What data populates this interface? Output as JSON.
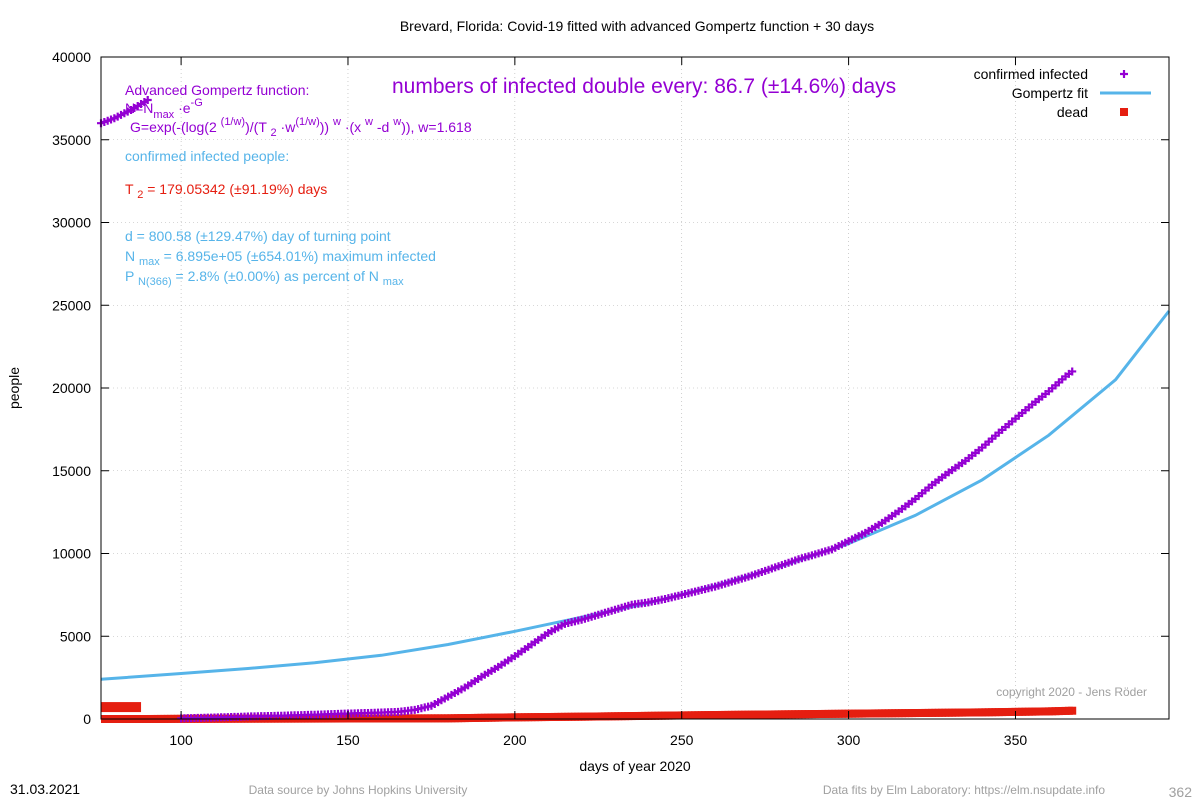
{
  "colors": {
    "infected": "#9400d3",
    "fit": "#56b4e9",
    "dead": "#e51e10",
    "frame": "#000000",
    "grid": "#b0b0b0",
    "copyright": "#a0a0a0",
    "footer": "#a0a0a0"
  },
  "footer": {
    "date": "31.03.2021",
    "source": "Data source by Johns Hopkins University",
    "fits": "Data fits by Elm Laboratory: https://elm.nsupdate.info",
    "page": "362"
  },
  "copyright": "copyright 2020 - Jens Röder",
  "annotations": {
    "doubling": "numbers of infected double every: 86.7 (±14.6%) days",
    "formula_title": "Advanced Gompertz function:",
    "formula_n": {
      "a": "N=N",
      "sub": "max",
      "b": " ·e",
      "sup": "-G"
    },
    "formula_g": {
      "p1": "G=exp(-(log(2 ",
      "s1": "(1/w)",
      "p2": ")/(T ",
      "sub2": "2",
      "p3": " ·w",
      "s3": "(1/w)",
      "p4": ")) ",
      "s4": "w",
      "p5": " ·(x ",
      "s5": "w",
      "p6": " -d ",
      "s6": "w",
      "p7": ")), w=1.618"
    },
    "confirmed_label": "confirmed infected people:",
    "t2": {
      "a": "T ",
      "sub": "2",
      "b": " = 179.05342 (±91.19%) days"
    },
    "d_line": "d = 800.58 (±129.47%) day of turning point",
    "nmax": {
      "a": "N ",
      "sub": "max",
      "b": " = 6.895e+05 (±654.01%) maximum infected"
    },
    "pn": {
      "a": "P ",
      "sub": "N(366)",
      "b": " = 2.8% (±0.00%) as percent of N ",
      "sub2": "max"
    }
  },
  "chart_data": {
    "type": "scatter",
    "title": "Brevard,  Florida: Covid-19 fitted with advanced Gompertz function + 30 days",
    "xlabel": "days of year 2020",
    "ylabel": "people",
    "xlim": [
      76,
      396
    ],
    "ylim": [
      0,
      40000
    ],
    "xticks": [
      100,
      150,
      200,
      250,
      300,
      350
    ],
    "yticks": [
      0,
      5000,
      10000,
      15000,
      20000,
      25000,
      30000,
      35000,
      40000
    ],
    "grid": true,
    "legend_position": "top-right",
    "legend": [
      "confirmed infected",
      "Gompertz fit",
      "dead"
    ],
    "series": [
      {
        "name": "confirmed infected",
        "style": "points-plus",
        "x": [
          76,
          80,
          85,
          90,
          100,
          110,
          120,
          130,
          140,
          150,
          160,
          165,
          170,
          175,
          180,
          185,
          190,
          195,
          200,
          205,
          210,
          215,
          220,
          225,
          230,
          235,
          240,
          245,
          250,
          255,
          260,
          265,
          270,
          275,
          280,
          285,
          290,
          295,
          300,
          305,
          310,
          315,
          320,
          325,
          330,
          335,
          340,
          345,
          350,
          355,
          360,
          365,
          367
        ],
        "y": [
          36000,
          36300,
          36800,
          37400,
          40,
          90,
          150,
          200,
          260,
          330,
          390,
          430,
          550,
          800,
          1350,
          1900,
          2550,
          3150,
          3800,
          4500,
          5200,
          5750,
          6000,
          6300,
          6600,
          6900,
          7050,
          7250,
          7500,
          7750,
          8000,
          8300,
          8600,
          8950,
          9300,
          9650,
          9950,
          10250,
          10750,
          11250,
          11850,
          12550,
          13300,
          14150,
          14900,
          15600,
          16400,
          17300,
          18150,
          19000,
          19800,
          20700,
          21000
        ]
      },
      {
        "name": "Gompertz fit",
        "style": "line",
        "x": [
          76,
          100,
          120,
          140,
          160,
          180,
          200,
          220,
          240,
          260,
          280,
          300,
          320,
          340,
          360,
          380,
          396
        ],
        "y": [
          2400,
          2750,
          3050,
          3400,
          3850,
          4500,
          5300,
          6150,
          7000,
          8050,
          9250,
          10600,
          12300,
          14450,
          17150,
          20500,
          24650
        ]
      },
      {
        "name": "dead",
        "style": "points-square",
        "x": [
          76,
          88,
          90,
          100,
          120,
          150,
          180,
          200,
          220,
          240,
          260,
          280,
          300,
          320,
          340,
          360,
          367
        ],
        "y": [
          720,
          720,
          0,
          10,
          20,
          30,
          40,
          100,
          140,
          190,
          240,
          280,
          320,
          360,
          400,
          460,
          500
        ]
      }
    ]
  }
}
